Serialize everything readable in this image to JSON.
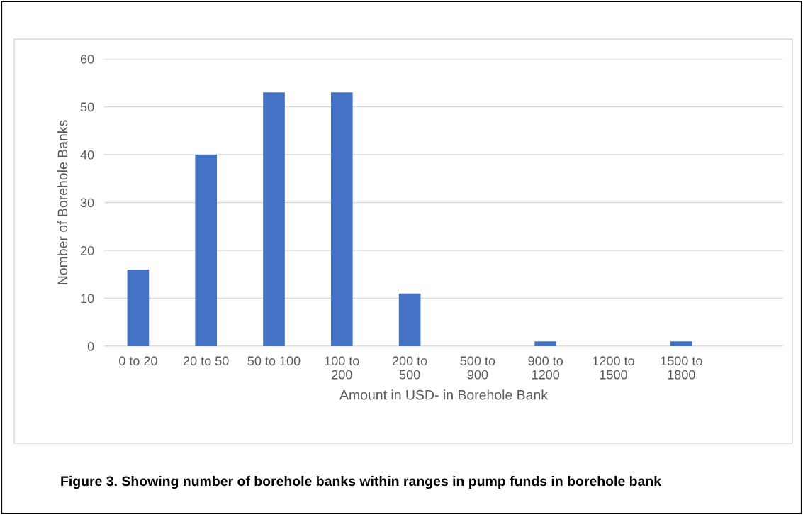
{
  "chart_data": {
    "type": "bar",
    "ylabel": "Nomber of Borehole Banks",
    "xlabel": "Amount in USD- in Borehole Bank",
    "categories": [
      "0 to 20",
      "20 to 50",
      "50 to 100",
      "100 to 200",
      "200 to 500",
      "500 to 900",
      "900 to 1200",
      "1200 to 1500",
      "1500 to 1800",
      null
    ],
    "values": [
      16,
      40,
      53,
      53,
      11,
      0,
      1,
      0,
      1,
      0
    ],
    "color": "#4472c4",
    "ylim": [
      0,
      60
    ],
    "yticks": [
      0,
      10,
      20,
      30,
      40,
      50,
      60
    ],
    "grid": "y",
    "legend": false,
    "annotations": [
      "Figure 3. Showing number of borehole banks within ranges in pump funds in borehole bank"
    ]
  }
}
